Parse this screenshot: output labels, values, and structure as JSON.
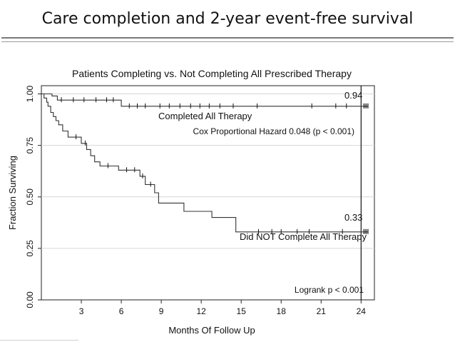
{
  "slide": {
    "title": "Care completion and 2-year event-free survival"
  },
  "chart_data": {
    "type": "line",
    "chart_kind": "Kaplan-Meier survival curve",
    "title": "Patients Completing vs. Not Completing All Prescribed Therapy",
    "xlabel": "Months Of Follow Up",
    "ylabel": "Fraction Surviving",
    "x_ticks": [
      3,
      6,
      9,
      12,
      15,
      18,
      21,
      24
    ],
    "x_tick_labels": [
      "3",
      "6",
      "9",
      "12",
      "15",
      "18",
      "21",
      "24"
    ],
    "y_ticks": [
      0.0,
      0.25,
      0.5,
      0.75,
      1.0
    ],
    "y_tick_labels": [
      "0.00",
      "0.25",
      "0.50",
      "0.75",
      "1.00"
    ],
    "xlim": [
      0,
      25
    ],
    "ylim": [
      0,
      1.04
    ],
    "grid": "horizontal",
    "vertical_reference_x": 24,
    "series": [
      {
        "label": "Completed All Therapy",
        "step_points": [
          [
            0,
            1.0
          ],
          [
            0.8,
            1.0
          ],
          [
            0.8,
            0.99
          ],
          [
            1.2,
            0.99
          ],
          [
            1.2,
            0.97
          ],
          [
            6.0,
            0.97
          ],
          [
            6.0,
            0.94
          ],
          [
            24.5,
            0.94
          ]
        ],
        "censor_x": [
          1.5,
          2.4,
          3.2,
          4.1,
          4.9,
          5.4,
          6.6,
          7.2,
          7.8,
          8.9,
          9.6,
          10.4,
          11.2,
          11.9,
          12.6,
          13.4,
          14.4,
          16.2,
          20.3,
          22.1,
          22.9
        ],
        "end_value_label": "0.94",
        "end_value": 0.94
      },
      {
        "label": "Did NOT Complete All Therapy",
        "step_points": [
          [
            0,
            1.0
          ],
          [
            0.2,
            1.0
          ],
          [
            0.2,
            0.98
          ],
          [
            0.4,
            0.98
          ],
          [
            0.4,
            0.96
          ],
          [
            0.5,
            0.96
          ],
          [
            0.5,
            0.94
          ],
          [
            0.7,
            0.94
          ],
          [
            0.7,
            0.91
          ],
          [
            0.9,
            0.91
          ],
          [
            0.9,
            0.89
          ],
          [
            1.1,
            0.89
          ],
          [
            1.1,
            0.87
          ],
          [
            1.3,
            0.87
          ],
          [
            1.3,
            0.85
          ],
          [
            1.6,
            0.85
          ],
          [
            1.6,
            0.82
          ],
          [
            2.0,
            0.82
          ],
          [
            2.0,
            0.79
          ],
          [
            3.0,
            0.79
          ],
          [
            3.0,
            0.76
          ],
          [
            3.4,
            0.76
          ],
          [
            3.4,
            0.73
          ],
          [
            3.7,
            0.73
          ],
          [
            3.7,
            0.7
          ],
          [
            4.0,
            0.7
          ],
          [
            4.0,
            0.67
          ],
          [
            4.4,
            0.67
          ],
          [
            4.4,
            0.65
          ],
          [
            5.8,
            0.65
          ],
          [
            5.8,
            0.63
          ],
          [
            7.4,
            0.63
          ],
          [
            7.4,
            0.6
          ],
          [
            7.8,
            0.6
          ],
          [
            7.8,
            0.56
          ],
          [
            8.5,
            0.56
          ],
          [
            8.5,
            0.52
          ],
          [
            8.8,
            0.52
          ],
          [
            8.8,
            0.47
          ],
          [
            10.7,
            0.47
          ],
          [
            10.7,
            0.43
          ],
          [
            12.8,
            0.43
          ],
          [
            12.8,
            0.4
          ],
          [
            14.6,
            0.4
          ],
          [
            14.6,
            0.33
          ],
          [
            24.5,
            0.33
          ]
        ],
        "censor_x": [
          2.6,
          3.3,
          5.0,
          6.4,
          7.0,
          7.6,
          8.2,
          16.3,
          17.3,
          18.0,
          19.2,
          20.1,
          22.6
        ],
        "end_value_label": "0.33",
        "end_value": 0.33
      }
    ],
    "annotations": {
      "cox": "Cox Proportional Hazard 0.048 (p < 0.001)",
      "logrank": "Logrank p < 0.001"
    }
  }
}
